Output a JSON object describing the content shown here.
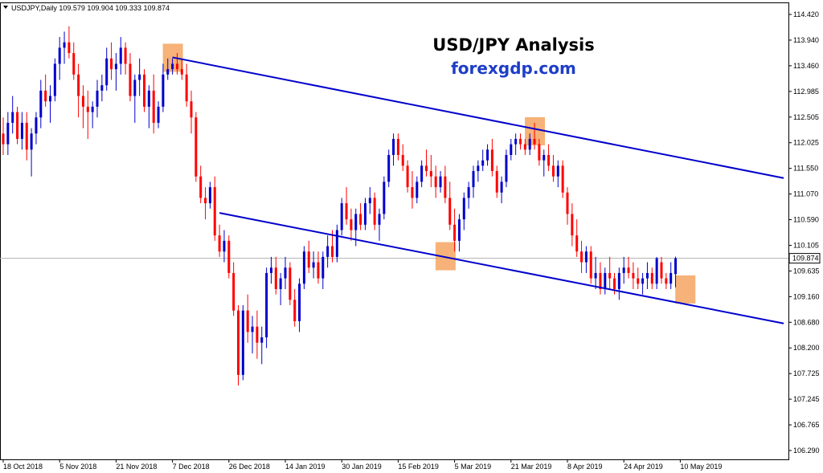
{
  "chart_data": {
    "type": "candlestick",
    "symbol_info": "USDJPY,Daily  109.579 109.904 109.333 109.874",
    "title": "USD/JPY Analysis",
    "subtitle": "forexgdp.com",
    "ylim": [
      106.29,
      114.42
    ],
    "yticks": [
      "114.420",
      "113.940",
      "113.460",
      "112.985",
      "112.505",
      "112.025",
      "111.550",
      "111.070",
      "110.590",
      "110.105",
      "109.635",
      "109.160",
      "108.680",
      "108.200",
      "107.725",
      "107.245",
      "106.765",
      "106.290"
    ],
    "current_price": "109.874",
    "xticks": [
      {
        "label": "18 Oct 2018",
        "bar": 0
      },
      {
        "label": "5 Nov 2018",
        "bar": 12
      },
      {
        "label": "21 Nov 2018",
        "bar": 24
      },
      {
        "label": "7 Dec 2018",
        "bar": 36
      },
      {
        "label": "26 Dec 2018",
        "bar": 48
      },
      {
        "label": "14 Jan 2019",
        "bar": 60
      },
      {
        "label": "30 Jan 2019",
        "bar": 72
      },
      {
        "label": "15 Feb 2019",
        "bar": 84
      },
      {
        "label": "5 Mar 2019",
        "bar": 96
      },
      {
        "label": "21 Mar 2019",
        "bar": 108
      },
      {
        "label": "8 Apr 2019",
        "bar": 120
      },
      {
        "label": "24 Apr 2019",
        "bar": 132
      },
      {
        "label": "10 May 2019",
        "bar": 144
      }
    ],
    "candles": [
      [
        112.2,
        112.5,
        111.8,
        112.0
      ],
      [
        112.0,
        112.6,
        111.8,
        112.4
      ],
      [
        112.4,
        112.9,
        112.2,
        112.6
      ],
      [
        112.6,
        112.7,
        112.0,
        112.1
      ],
      [
        112.1,
        112.6,
        111.9,
        112.4
      ],
      [
        112.4,
        112.6,
        111.7,
        111.9
      ],
      [
        111.9,
        112.3,
        111.4,
        112.2
      ],
      [
        112.2,
        112.6,
        112.0,
        112.5
      ],
      [
        112.5,
        113.2,
        112.3,
        113.0
      ],
      [
        113.0,
        113.3,
        112.7,
        112.8
      ],
      [
        112.8,
        113.1,
        112.4,
        112.9
      ],
      [
        112.9,
        113.6,
        112.8,
        113.5
      ],
      [
        113.5,
        114.0,
        113.2,
        113.8
      ],
      [
        113.8,
        114.1,
        113.5,
        113.9
      ],
      [
        113.9,
        114.2,
        113.6,
        113.7
      ],
      [
        113.7,
        113.9,
        113.2,
        113.3
      ],
      [
        113.3,
        113.5,
        112.5,
        112.9
      ],
      [
        112.9,
        113.1,
        112.3,
        112.7
      ],
      [
        112.7,
        113.0,
        112.1,
        112.6
      ],
      [
        112.6,
        112.8,
        112.3,
        112.7
      ],
      [
        112.7,
        113.2,
        112.5,
        113.0
      ],
      [
        113.0,
        113.3,
        112.8,
        113.1
      ],
      [
        113.1,
        113.8,
        113.0,
        113.6
      ],
      [
        113.6,
        113.9,
        113.2,
        113.4
      ],
      [
        113.4,
        113.7,
        113.0,
        113.5
      ],
      [
        113.5,
        114.0,
        113.3,
        113.8
      ],
      [
        113.8,
        113.9,
        113.3,
        113.5
      ],
      [
        113.5,
        113.7,
        112.8,
        112.9
      ],
      [
        112.9,
        113.3,
        112.4,
        113.2
      ],
      [
        113.2,
        113.6,
        112.9,
        113.3
      ],
      [
        113.3,
        113.4,
        112.6,
        112.7
      ],
      [
        112.7,
        113.1,
        112.3,
        113.0
      ],
      [
        113.0,
        113.3,
        112.2,
        112.4
      ],
      [
        112.4,
        112.8,
        112.3,
        112.7
      ],
      [
        112.7,
        113.5,
        112.6,
        113.3
      ],
      [
        113.3,
        113.6,
        113.2,
        113.4
      ],
      [
        113.4,
        113.6,
        113.3,
        113.5
      ],
      [
        113.5,
        113.7,
        113.3,
        113.4
      ],
      [
        113.4,
        113.6,
        113.2,
        113.3
      ],
      [
        113.3,
        113.5,
        112.7,
        112.8
      ],
      [
        112.8,
        113.0,
        112.2,
        112.5
      ],
      [
        112.5,
        112.6,
        111.3,
        111.4
      ],
      [
        111.4,
        111.6,
        110.9,
        111.0
      ],
      [
        111.0,
        111.2,
        110.6,
        110.9
      ],
      [
        110.9,
        111.3,
        110.8,
        111.2
      ],
      [
        111.2,
        111.4,
        110.2,
        110.3
      ],
      [
        110.3,
        110.5,
        109.9,
        110.0
      ],
      [
        110.0,
        110.4,
        109.8,
        110.2
      ],
      [
        110.2,
        110.3,
        109.5,
        109.6
      ],
      [
        109.6,
        109.8,
        108.8,
        108.9
      ],
      [
        108.9,
        109.0,
        107.5,
        107.7
      ],
      [
        107.7,
        109.0,
        107.6,
        108.9
      ],
      [
        108.9,
        109.2,
        108.3,
        108.5
      ],
      [
        108.5,
        108.8,
        108.1,
        108.6
      ],
      [
        108.6,
        108.9,
        108.0,
        108.3
      ],
      [
        108.3,
        108.6,
        107.9,
        108.4
      ],
      [
        108.4,
        109.7,
        108.2,
        109.6
      ],
      [
        109.6,
        109.9,
        109.4,
        109.7
      ],
      [
        109.7,
        109.9,
        109.2,
        109.3
      ],
      [
        109.3,
        109.6,
        109.0,
        109.5
      ],
      [
        109.5,
        109.9,
        109.3,
        109.7
      ],
      [
        109.7,
        109.8,
        109.0,
        109.1
      ],
      [
        109.1,
        109.3,
        108.6,
        108.7
      ],
      [
        108.7,
        109.5,
        108.5,
        109.4
      ],
      [
        109.4,
        110.1,
        109.3,
        110.0
      ],
      [
        110.0,
        110.2,
        109.6,
        109.7
      ],
      [
        109.7,
        110.0,
        109.5,
        109.8
      ],
      [
        109.8,
        110.0,
        109.4,
        109.5
      ],
      [
        109.5,
        110.0,
        109.3,
        109.9
      ],
      [
        109.9,
        110.3,
        109.7,
        110.1
      ],
      [
        110.1,
        110.4,
        109.8,
        109.9
      ],
      [
        109.9,
        110.5,
        109.8,
        110.4
      ],
      [
        110.4,
        111.0,
        110.3,
        110.9
      ],
      [
        110.9,
        111.2,
        110.5,
        110.6
      ],
      [
        110.6,
        110.8,
        110.2,
        110.4
      ],
      [
        110.4,
        110.8,
        110.1,
        110.7
      ],
      [
        110.7,
        110.9,
        110.4,
        110.5
      ],
      [
        110.5,
        111.0,
        110.4,
        110.9
      ],
      [
        110.9,
        111.2,
        110.7,
        111.0
      ],
      [
        111.0,
        111.1,
        110.4,
        110.5
      ],
      [
        110.5,
        110.8,
        110.2,
        110.7
      ],
      [
        110.7,
        111.4,
        110.6,
        111.3
      ],
      [
        111.3,
        111.9,
        111.2,
        111.8
      ],
      [
        111.8,
        112.2,
        111.6,
        112.1
      ],
      [
        112.1,
        112.2,
        111.7,
        111.8
      ],
      [
        111.8,
        112.0,
        111.5,
        111.6
      ],
      [
        111.6,
        111.7,
        111.1,
        111.2
      ],
      [
        111.2,
        111.5,
        110.8,
        111.0
      ],
      [
        111.0,
        111.4,
        110.9,
        111.3
      ],
      [
        111.3,
        111.7,
        111.2,
        111.6
      ],
      [
        111.6,
        111.9,
        111.4,
        111.5
      ],
      [
        111.5,
        111.8,
        111.2,
        111.4
      ],
      [
        111.4,
        111.6,
        111.0,
        111.2
      ],
      [
        111.2,
        111.5,
        111.1,
        111.4
      ],
      [
        111.4,
        111.6,
        110.9,
        111.0
      ],
      [
        111.0,
        111.3,
        110.4,
        110.5
      ],
      [
        110.5,
        110.8,
        110.0,
        110.2
      ],
      [
        110.2,
        110.7,
        110.0,
        110.6
      ],
      [
        110.6,
        111.1,
        110.4,
        111.0
      ],
      [
        111.0,
        111.3,
        110.8,
        111.2
      ],
      [
        111.2,
        111.6,
        111.0,
        111.5
      ],
      [
        111.5,
        111.7,
        111.3,
        111.6
      ],
      [
        111.6,
        111.9,
        111.5,
        111.7
      ],
      [
        111.7,
        112.0,
        111.6,
        111.9
      ],
      [
        111.9,
        112.1,
        111.4,
        111.5
      ],
      [
        111.5,
        111.6,
        111.0,
        111.1
      ],
      [
        111.1,
        111.4,
        110.9,
        111.3
      ],
      [
        111.3,
        111.9,
        111.2,
        111.8
      ],
      [
        111.8,
        112.1,
        111.7,
        112.0
      ],
      [
        112.0,
        112.2,
        111.8,
        112.1
      ],
      [
        112.1,
        112.2,
        111.9,
        112.0
      ],
      [
        112.0,
        112.1,
        111.8,
        111.9
      ],
      [
        111.9,
        112.2,
        111.8,
        112.1
      ],
      [
        112.1,
        112.4,
        111.9,
        112.0
      ],
      [
        112.0,
        112.1,
        111.6,
        111.7
      ],
      [
        111.7,
        111.9,
        111.4,
        111.8
      ],
      [
        111.8,
        112.0,
        111.5,
        111.6
      ],
      [
        111.6,
        111.8,
        111.3,
        111.4
      ],
      [
        111.4,
        111.7,
        111.2,
        111.6
      ],
      [
        111.6,
        111.7,
        111.0,
        111.1
      ],
      [
        111.1,
        111.2,
        110.5,
        110.7
      ],
      [
        110.7,
        110.9,
        110.1,
        110.3
      ],
      [
        110.3,
        110.6,
        109.9,
        110.0
      ],
      [
        110.0,
        110.2,
        109.6,
        109.8
      ],
      [
        109.8,
        110.1,
        109.6,
        110.0
      ],
      [
        110.0,
        110.1,
        109.4,
        109.5
      ],
      [
        109.5,
        109.9,
        109.3,
        109.6
      ],
      [
        109.6,
        109.8,
        109.2,
        109.3
      ],
      [
        109.3,
        109.7,
        109.2,
        109.6
      ],
      [
        109.6,
        109.9,
        109.3,
        109.5
      ],
      [
        109.5,
        109.6,
        109.2,
        109.3
      ],
      [
        109.3,
        109.7,
        109.1,
        109.6
      ],
      [
        109.6,
        109.9,
        109.4,
        109.7
      ],
      [
        109.7,
        109.9,
        109.5,
        109.6
      ],
      [
        109.6,
        109.8,
        109.3,
        109.5
      ],
      [
        109.5,
        109.7,
        109.3,
        109.4
      ],
      [
        109.4,
        109.6,
        109.2,
        109.5
      ],
      [
        109.5,
        109.8,
        109.3,
        109.6
      ],
      [
        109.6,
        109.7,
        109.3,
        109.4
      ],
      [
        109.4,
        109.9,
        109.3,
        109.874
      ],
      [
        109.8,
        109.9,
        109.4,
        109.5
      ],
      [
        109.5,
        109.6,
        109.3,
        109.4
      ],
      [
        109.4,
        109.8,
        109.3,
        109.6
      ],
      [
        109.579,
        109.904,
        109.333,
        109.874
      ]
    ],
    "trendlines": [
      {
        "from": {
          "bar": 36,
          "price": 113.62
        },
        "to": {
          "bar": 166,
          "price": 111.37
        }
      },
      {
        "from": {
          "bar": 46,
          "price": 110.72
        },
        "to": {
          "bar": 166,
          "price": 108.66
        }
      }
    ],
    "highlights": [
      {
        "bar": 36,
        "price": 113.62
      },
      {
        "bar": 113,
        "price": 112.25
      },
      {
        "bar": 94,
        "price": 109.92
      },
      {
        "bar": 145,
        "price": 109.3
      }
    ],
    "colors": {
      "bull": "#0000cc",
      "bear": "#ff0000",
      "trendline": "#0000cc",
      "highlight": "#f4a460",
      "subtitle": "#1e3ec8",
      "current_line": "#b0b0b0"
    }
  }
}
